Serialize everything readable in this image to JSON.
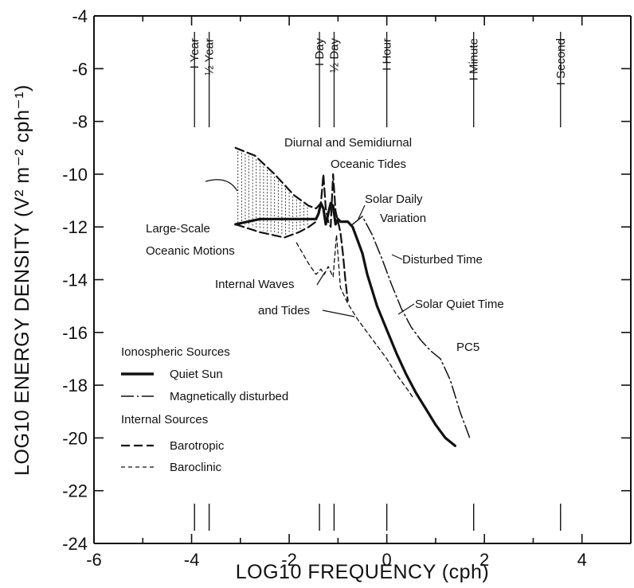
{
  "chart_data": {
    "type": "line",
    "title": "",
    "xlabel": "LOG10 FREQUENCY (cph)",
    "ylabel": "LOG10 ENERGY DENSITY (V² m⁻² cph⁻¹)",
    "xlim": [
      -6,
      5
    ],
    "ylim": [
      -24,
      -4
    ],
    "x_ticks": [
      "-6",
      "-4",
      "-2",
      "0",
      "2",
      "4"
    ],
    "y_ticks": [
      "-4",
      "-6",
      "-8",
      "-10",
      "-12",
      "-14",
      "-16",
      "-18",
      "-20",
      "-22",
      "-24"
    ],
    "periods": [
      {
        "label": "I Year",
        "x": -3.94
      },
      {
        "label": "½ Year",
        "x": -3.64
      },
      {
        "label": "I Day",
        "x": -1.38
      },
      {
        "label": "½ Day",
        "x": -1.08
      },
      {
        "label": "I Hour",
        "x": 0.0
      },
      {
        "label": "I Minute",
        "x": 1.78
      },
      {
        "label": "I Second",
        "x": 3.56
      }
    ],
    "series": [
      {
        "name": "Quiet Sun",
        "style": "solid",
        "x": [
          -3.1,
          -2.6,
          -2.0,
          -1.6,
          -1.45,
          -1.4,
          -1.35,
          -1.3,
          -1.25,
          -1.2,
          -1.15,
          -1.1,
          -1.05,
          -1.0,
          -0.95,
          -0.9,
          -0.8,
          -0.7,
          -0.6,
          -0.5,
          -0.4,
          -0.2,
          0.0,
          0.2,
          0.4,
          0.6,
          0.8,
          1.0,
          1.2,
          1.4
        ],
        "y": [
          -11.9,
          -11.7,
          -11.7,
          -11.7,
          -11.7,
          -11.5,
          -11.1,
          -11.3,
          -11.9,
          -11.5,
          -11.1,
          -11.2,
          -11.9,
          -11.7,
          -11.8,
          -11.8,
          -11.8,
          -12.0,
          -12.5,
          -13.0,
          -13.8,
          -15.0,
          -15.9,
          -16.8,
          -17.6,
          -18.3,
          -18.9,
          -19.5,
          -20.0,
          -20.3
        ]
      },
      {
        "name": "Magnetically disturbed",
        "style": "dashdot",
        "x": [
          -0.7,
          -0.5,
          -0.3,
          -0.1,
          0.1,
          0.3,
          0.5,
          0.7,
          0.9,
          1.1,
          1.3,
          1.5,
          1.7
        ],
        "y": [
          -11.9,
          -11.6,
          -12.3,
          -13.2,
          -14.2,
          -15.1,
          -15.8,
          -16.3,
          -16.7,
          -17.0,
          -17.8,
          -19.0,
          -20.0
        ]
      },
      {
        "name": "Barotropic",
        "style": "longdash",
        "x": [
          -3.1,
          -2.7,
          -2.3,
          -1.9,
          -1.6,
          -1.45,
          -1.35,
          -1.3,
          -1.25,
          -1.2,
          -1.15,
          -1.1,
          -1.05,
          -1.0,
          -0.95,
          -0.9,
          -0.85,
          -0.8
        ],
        "y": [
          -9.0,
          -9.3,
          -10.0,
          -10.8,
          -11.2,
          -11.3,
          -11.1,
          -10.0,
          -11.3,
          -11.8,
          -12.0,
          -10.0,
          -11.4,
          -11.8,
          -12.2,
          -13.0,
          -14.0,
          -14.8
        ]
      },
      {
        "name": "Large-Scale Oceanic Motions lower bound",
        "style": "longdash",
        "x": [
          -3.1,
          -2.6,
          -2.1,
          -1.8,
          -1.6,
          -1.45
        ],
        "y": [
          -11.9,
          -12.2,
          -12.4,
          -12.2,
          -12.0,
          -11.8
        ]
      },
      {
        "name": "Baroclinic",
        "style": "shortdash",
        "x": [
          -1.85,
          -1.6,
          -1.45,
          -1.35,
          -1.28,
          -1.2,
          -1.1,
          -1.03,
          -0.95,
          -0.8,
          -0.6,
          -0.4,
          -0.2,
          0.0,
          0.2,
          0.4,
          0.55
        ],
        "y": [
          -12.6,
          -13.4,
          -13.8,
          -13.6,
          -13.8,
          -13.5,
          -13.9,
          -12.3,
          -14.3,
          -14.9,
          -15.5,
          -16.0,
          -16.5,
          -17.0,
          -17.6,
          -18.1,
          -18.5
        ]
      }
    ],
    "annotations": [
      "Diurnal and Semidiurnal",
      "Oceanic Tides",
      "Solar Daily",
      "Variation",
      "Large-Scale",
      "Oceanic Motions",
      "Disturbed Time",
      "Internal Waves",
      "and Tides",
      "Solar Quiet Time",
      "PC5"
    ],
    "legend": {
      "position": "bottom-left",
      "groups": [
        {
          "title": "Ionospheric Sources",
          "items": [
            "Quiet Sun",
            "Magnetically disturbed"
          ]
        },
        {
          "title": "Internal Sources",
          "items": [
            "Barotropic",
            "Baroclinic"
          ]
        }
      ]
    },
    "grid": false
  }
}
